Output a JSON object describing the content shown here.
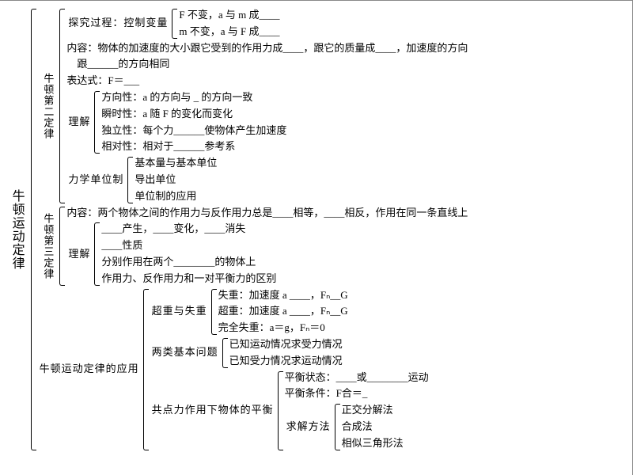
{
  "root_label": "牛顿运动定律",
  "law2_label": "牛顿第二定律",
  "law3_label": "牛顿第三定律",
  "app_label": "牛顿运动定律的应用",
  "lijie_label": "理解",
  "tanjiu_label": "探究过程：控制变量",
  "tanjiu_1": "F 不变，a 与 m 成____",
  "tanjiu_2": "m 不变，a 与 F 成____",
  "neirong_1a": "内容：物体的加速度的大小跟它受到的作用力成____，跟它的质量成____，加速度的方向",
  "neirong_1b": "　跟______的方向相同",
  "biaodashi": "表达式：F＝___",
  "lijie2_1": "方向性：a 的方向与 _ 的方向一致",
  "lijie2_2": "瞬时性：a 随 F 的变化而变化",
  "lijie2_3": "独立性：每个力______使物体产生加速度",
  "lijie2_4": "相对性：相对于______参考系",
  "lixue_label": "力学单位制",
  "lixue_1": "基本量与基本单位",
  "lixue_2": "导出单位",
  "lixue_3": "单位制的应用",
  "neirong3": "内容：两个物体之间的作用力与反作用力总是____相等，____相反，作用在同一条直线上",
  "lijie3_1": "____产生，____变化，____消失",
  "lijie3_2": "____性质",
  "lijie3_3": "分别作用在两个________的物体上",
  "lijie3_4": "作用力、反作用力和一对平衡力的区别",
  "czsz_label": "超重与失重",
  "czsz_1": "失重：加速度 a ____，Fₙ__G",
  "czsz_2": "超重：加速度 a ____，Fₙ__G",
  "czsz_3": "完全失重：a＝g，Fₙ＝0",
  "liangl_label": "两类基本问题",
  "liangl_1": "已知运动情况求受力情况",
  "liangl_2": "已知受力情况求运动情况",
  "gdl_label": "共点力作用下物体的平衡",
  "gdl_1": "平衡状态：____或________运动",
  "gdl_2": "平衡条件：F合＝_",
  "qjff_label": "求解方法",
  "qjff_1": "正交分解法",
  "qjff_2": "合成法",
  "qjff_3": "相似三角形法",
  "color_text": "#000000",
  "color_bg": "#ffffff",
  "fontsize_body": 13,
  "fontsize_root": 16
}
